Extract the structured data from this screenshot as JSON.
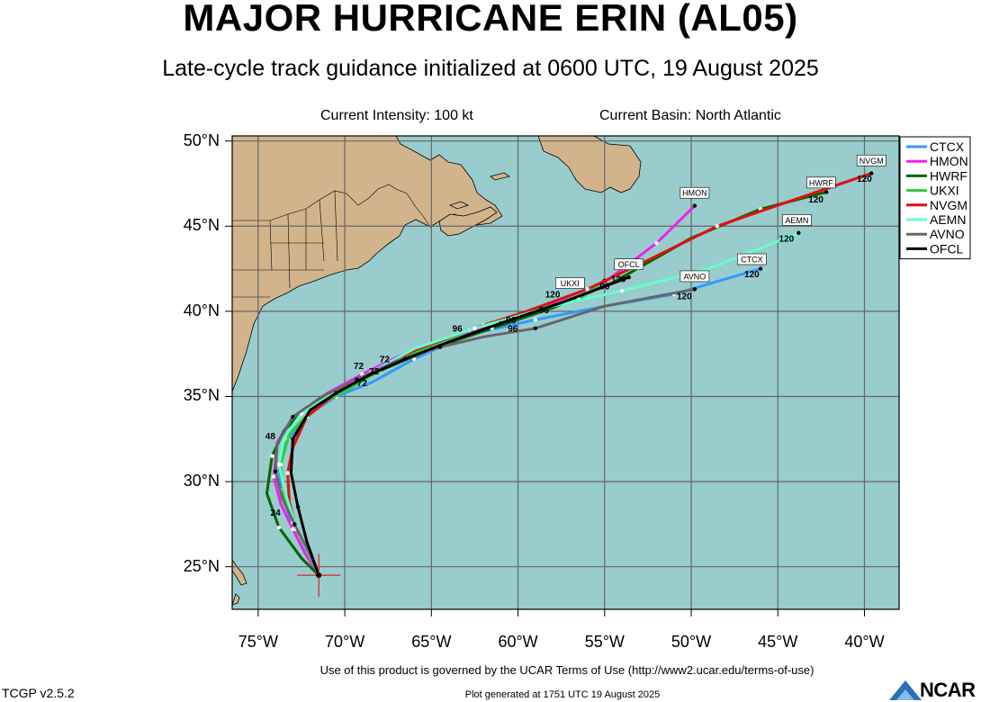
{
  "title": "MAJOR HURRICANE ERIN (AL05)",
  "subtitle": "Late-cycle track guidance initialized at 0600 UTC, 19 August 2025",
  "current_intensity": "Current Intensity: 100 kt",
  "current_basin": "Current Basin: North Atlantic",
  "footer": {
    "terms": "Use of this product is governed by the UCAR Terms of Use (http://www2.ucar.edu/terms-of-use)",
    "version": "TCGP v2.5.2",
    "generated": "Plot generated at 1751 UTC   19 August 2025",
    "logo_text": "NCAR"
  },
  "colors": {
    "ocean": "#99cccc",
    "land": "#d2b48c",
    "grid": "#666666",
    "current_position_marker": "#e62020"
  },
  "chart_data": {
    "type": "map",
    "lon_range": [
      -76.5,
      -38
    ],
    "lat_range": [
      22.5,
      50.3
    ],
    "x_ticks": [
      {
        "value": -75,
        "label": "75°W"
      },
      {
        "value": -70,
        "label": "70°W"
      },
      {
        "value": -65,
        "label": "65°W"
      },
      {
        "value": -60,
        "label": "60°W"
      },
      {
        "value": -55,
        "label": "55°W"
      },
      {
        "value": -50,
        "label": "50°W"
      },
      {
        "value": -45,
        "label": "45°W"
      },
      {
        "value": -40,
        "label": "40°W"
      }
    ],
    "y_ticks": [
      {
        "value": 50,
        "label": "50°N"
      },
      {
        "value": 45,
        "label": "45°N"
      },
      {
        "value": 40,
        "label": "40°N"
      },
      {
        "value": 35,
        "label": "35°N"
      },
      {
        "value": 30,
        "label": "30°N"
      },
      {
        "value": 25,
        "label": "25°N"
      }
    ],
    "grid": true,
    "legend_position": "right",
    "current_position": {
      "lon": -71.5,
      "lat": 24.5
    },
    "models": [
      {
        "name": "CTCX",
        "color": "#3399ff",
        "track": [
          [
            -71.5,
            24.5
          ],
          [
            -72.0,
            25.5
          ],
          [
            -72.6,
            26.8
          ],
          [
            -73.2,
            28.0
          ],
          [
            -73.7,
            29.5
          ],
          [
            -73.8,
            31.0
          ],
          [
            -73.3,
            32.5
          ],
          [
            -72.0,
            34.0
          ],
          [
            -70.5,
            35.0
          ],
          [
            -68.5,
            35.8
          ],
          [
            -66.0,
            37.2
          ],
          [
            -63.0,
            38.6
          ],
          [
            -59.0,
            39.5
          ],
          [
            -55.0,
            40.3
          ],
          [
            -51.0,
            41.0
          ],
          [
            -46.0,
            42.5
          ]
        ],
        "hour_labels": [
          {
            "text": "96",
            "lon": -58.5,
            "lat": 39.9
          },
          {
            "text": "120",
            "lon": -46.5,
            "lat": 42.0
          }
        ],
        "end_label": {
          "text": "CTCX",
          "lon": -46.5,
          "lat": 42.9
        }
      },
      {
        "name": "HMON",
        "color": "#ee22ee",
        "track": [
          [
            -71.5,
            24.5
          ],
          [
            -72.3,
            25.8
          ],
          [
            -73.0,
            27.2
          ],
          [
            -73.7,
            28.7
          ],
          [
            -74.1,
            30.3
          ],
          [
            -73.9,
            32.3
          ],
          [
            -73.0,
            33.8
          ],
          [
            -71.0,
            35.2
          ],
          [
            -69.0,
            36.3
          ],
          [
            -67.0,
            37.3
          ],
          [
            -64.5,
            38.3
          ],
          [
            -61.5,
            39.2
          ],
          [
            -58.5,
            40.3
          ],
          [
            -55.0,
            41.7
          ],
          [
            -52.0,
            44.0
          ],
          [
            -49.8,
            46.2
          ]
        ],
        "hour_labels": [
          {
            "text": "72",
            "lon": -67.7,
            "lat": 37.0
          }
        ],
        "end_label": {
          "text": "HMON",
          "lon": -49.8,
          "lat": 46.8
        }
      },
      {
        "name": "HWRF",
        "color": "#006600",
        "track": [
          [
            -71.5,
            24.5
          ],
          [
            -72.5,
            25.5
          ],
          [
            -73.8,
            27.3
          ],
          [
            -74.5,
            29.3
          ],
          [
            -74.2,
            31.5
          ],
          [
            -73.5,
            33.0
          ],
          [
            -72.0,
            34.5
          ],
          [
            -70.0,
            35.5
          ],
          [
            -68.0,
            36.5
          ],
          [
            -65.0,
            37.8
          ],
          [
            -61.5,
            39.0
          ],
          [
            -58.0,
            40.2
          ],
          [
            -54.5,
            41.7
          ],
          [
            -50.0,
            44.3
          ],
          [
            -46.0,
            46.0
          ],
          [
            -42.2,
            47.0
          ]
        ],
        "hour_labels": [
          {
            "text": "48",
            "lon": -74.3,
            "lat": 32.5
          },
          {
            "text": "120",
            "lon": -42.8,
            "lat": 46.4
          }
        ],
        "end_label": {
          "text": "HWRF",
          "lon": -42.5,
          "lat": 47.4
        }
      },
      {
        "name": "UKXI",
        "color": "#33cc33",
        "track": [
          [
            -71.5,
            24.5
          ],
          [
            -72.2,
            26.0
          ],
          [
            -73.0,
            27.6
          ],
          [
            -73.5,
            29.2
          ],
          [
            -73.7,
            31.0
          ],
          [
            -73.2,
            32.8
          ],
          [
            -71.8,
            34.3
          ],
          [
            -69.5,
            35.6
          ],
          [
            -67.5,
            36.8
          ],
          [
            -65.0,
            38.0
          ],
          [
            -62.0,
            39.2
          ],
          [
            -59.0,
            40.1
          ],
          [
            -56.5,
            40.7
          ],
          [
            -55.0,
            41.8
          ]
        ],
        "hour_labels": [
          {
            "text": "72",
            "lon": -69.2,
            "lat": 36.6
          },
          {
            "text": "96",
            "lon": -63.5,
            "lat": 38.8
          },
          {
            "text": "120",
            "lon": -58.0,
            "lat": 40.8
          }
        ],
        "end_label": {
          "text": "UKXI",
          "lon": -57.0,
          "lat": 41.5
        }
      },
      {
        "name": "NVGM",
        "color": "#dd1111",
        "track": [
          [
            -71.5,
            24.5
          ],
          [
            -72.0,
            25.8
          ],
          [
            -72.8,
            27.2
          ],
          [
            -73.2,
            28.8
          ],
          [
            -73.3,
            30.5
          ],
          [
            -73.0,
            32.0
          ],
          [
            -72.2,
            33.8
          ],
          [
            -70.5,
            35.2
          ],
          [
            -68.5,
            36.4
          ],
          [
            -66.0,
            37.7
          ],
          [
            -62.8,
            38.9
          ],
          [
            -59.5,
            40.0
          ],
          [
            -56.0,
            41.3
          ],
          [
            -52.5,
            43.0
          ],
          [
            -48.5,
            45.0
          ],
          [
            -44.5,
            46.4
          ],
          [
            -39.6,
            48.1
          ]
        ],
        "hour_labels": [
          {
            "text": "72",
            "lon": -68.3,
            "lat": 36.3
          },
          {
            "text": "120",
            "lon": -40.0,
            "lat": 47.6
          }
        ],
        "end_label": {
          "text": "NVGM",
          "lon": -39.6,
          "lat": 48.7
        }
      },
      {
        "name": "AEMN",
        "color": "#66ffcc",
        "track": [
          [
            -71.5,
            24.5
          ],
          [
            -72.0,
            25.6
          ],
          [
            -72.8,
            27.3
          ],
          [
            -73.4,
            29.2
          ],
          [
            -73.8,
            31.0
          ],
          [
            -73.5,
            32.6
          ],
          [
            -72.5,
            34.0
          ],
          [
            -70.5,
            35.3
          ],
          [
            -68.5,
            36.4
          ],
          [
            -66.0,
            37.8
          ],
          [
            -62.5,
            39.0
          ],
          [
            -58.0,
            40.3
          ],
          [
            -54.0,
            41.2
          ],
          [
            -49.0,
            42.5
          ],
          [
            -43.8,
            44.6
          ]
        ],
        "hour_labels": [
          {
            "text": "120",
            "lon": -44.5,
            "lat": 44.1
          }
        ],
        "end_label": {
          "text": "AEMN",
          "lon": -43.9,
          "lat": 45.2
        }
      },
      {
        "name": "AVNO",
        "color": "#666666",
        "track": [
          [
            -71.5,
            24.5
          ],
          [
            -72.1,
            25.9
          ],
          [
            -72.9,
            27.5
          ],
          [
            -73.6,
            29.0
          ],
          [
            -74.0,
            30.6
          ],
          [
            -73.9,
            32.2
          ],
          [
            -73.0,
            33.8
          ],
          [
            -71.3,
            35.0
          ],
          [
            -69.3,
            36.0
          ],
          [
            -67.0,
            37.1
          ],
          [
            -64.5,
            37.9
          ],
          [
            -62.0,
            38.5
          ],
          [
            -59.0,
            39.0
          ],
          [
            -55.0,
            40.3
          ],
          [
            -49.8,
            41.3
          ]
        ],
        "hour_labels": [
          {
            "text": "96",
            "lon": -60.3,
            "lat": 38.8
          },
          {
            "text": "96",
            "lon": -60.4,
            "lat": 39.3
          },
          {
            "text": "120",
            "lon": -50.4,
            "lat": 40.7
          }
        ],
        "end_label": {
          "text": "AVNO",
          "lon": -49.8,
          "lat": 41.9
        }
      },
      {
        "name": "OFCL",
        "color": "#000000",
        "track": [
          [
            -71.5,
            24.5
          ],
          [
            -72.2,
            26.5
          ],
          [
            -72.7,
            28.5
          ],
          [
            -73.1,
            30.5
          ],
          [
            -73.0,
            32.5
          ],
          [
            -72.0,
            34.2
          ],
          [
            -70.5,
            35.2
          ],
          [
            -68.5,
            36.3
          ],
          [
            -66.5,
            37.2
          ],
          [
            -64.0,
            38.2
          ],
          [
            -61.0,
            39.3
          ],
          [
            -57.5,
            40.5
          ],
          [
            -53.6,
            42.0
          ]
        ],
        "hour_labels": [
          {
            "text": "24",
            "lon": -74.0,
            "lat": 28.0
          },
          {
            "text": "72",
            "lon": -69.0,
            "lat": 35.6
          },
          {
            "text": "96",
            "lon": -55.0,
            "lat": 41.3
          },
          {
            "text": "120",
            "lon": -54.2,
            "lat": 41.7
          }
        ],
        "end_label": {
          "text": "OFCL",
          "lon": -53.6,
          "lat": 42.6
        }
      }
    ]
  }
}
